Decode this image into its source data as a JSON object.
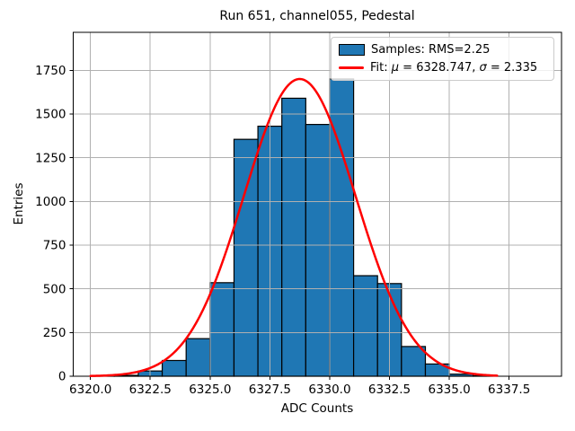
{
  "chart_data": {
    "type": "bar",
    "subtype": "histogram-with-gaussian-fit",
    "title": "Run 651, channel055, Pedestal",
    "xlabel": "ADC Counts",
    "ylabel": "Entries",
    "xlim": [
      6319.28,
      6339.69
    ],
    "ylim": [
      0,
      1967
    ],
    "grid": true,
    "x_tick_values": [
      6320.0,
      6322.5,
      6325.0,
      6327.5,
      6330.0,
      6332.5,
      6335.0,
      6337.5
    ],
    "x_tick_labels": [
      "6320.0",
      "6322.5",
      "6325.0",
      "6327.5",
      "6330.0",
      "6332.5",
      "6335.0",
      "6337.5"
    ],
    "y_tick_values": [
      0,
      250,
      500,
      750,
      1000,
      1250,
      1500,
      1750
    ],
    "y_tick_labels": [
      "0",
      "250",
      "500",
      "750",
      "1000",
      "1250",
      "1500",
      "1750"
    ],
    "histogram": {
      "bin_start": 6320,
      "bin_width": 1,
      "counts": [
        2,
        5,
        30,
        90,
        215,
        535,
        1355,
        1430,
        1590,
        1440,
        1700,
        575,
        530,
        170,
        70,
        12,
        3
      ],
      "fill_color": "#1f77b4",
      "edge_color": "#000000"
    },
    "fit_curve": {
      "type": "gaussian",
      "mu": 6328.747,
      "sigma": 2.335,
      "amplitude": 1700,
      "x_range": [
        6320,
        6337
      ],
      "color": "#ff0000"
    },
    "legend": {
      "position": "upper right",
      "entries": [
        {
          "swatch": "patch",
          "color": "#1f77b4",
          "label": "Samples: RMS=2.25"
        },
        {
          "swatch": "line",
          "color": "#ff0000",
          "label_parts": {
            "prefix": "Fit: ",
            "mu_symbol": "μ",
            "mu_value": " = 6328.747, ",
            "sigma_symbol": "σ",
            "sigma_value": " = 2.335"
          }
        }
      ]
    },
    "colors": {
      "grid": "#b0b0b0",
      "axis": "#000000",
      "background": "#ffffff"
    }
  }
}
